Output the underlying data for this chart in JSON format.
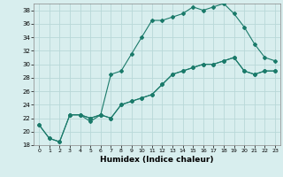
{
  "xlabel": "Humidex (Indice chaleur)",
  "bg_color": "#d8eeee",
  "grid_color": "#b8d8d8",
  "line_color": "#1a7a6a",
  "xlim": [
    -0.5,
    23.5
  ],
  "ylim": [
    18,
    39
  ],
  "xticks": [
    0,
    1,
    2,
    3,
    4,
    5,
    6,
    7,
    8,
    9,
    10,
    11,
    12,
    13,
    14,
    15,
    16,
    17,
    18,
    19,
    20,
    21,
    22,
    23
  ],
  "yticks": [
    18,
    20,
    22,
    24,
    26,
    28,
    30,
    32,
    34,
    36,
    38
  ],
  "line1_x": [
    0,
    1,
    2,
    3,
    4,
    5,
    6,
    7,
    8,
    9,
    10,
    11,
    12,
    13,
    14,
    15,
    16,
    17,
    18,
    19,
    20,
    21,
    22,
    23
  ],
  "line1_y": [
    21,
    19,
    18.5,
    22.5,
    22.5,
    21.5,
    22.5,
    22,
    24,
    24.5,
    25,
    25.5,
    27,
    28.5,
    29,
    29.5,
    30,
    30,
    30.5,
    31,
    29,
    28.5,
    29,
    29
  ],
  "line2_x": [
    0,
    1,
    2,
    3,
    4,
    5,
    6,
    7,
    8,
    9,
    10,
    11,
    12,
    13,
    14,
    15,
    16,
    17,
    18,
    19,
    20,
    21,
    22,
    23
  ],
  "line2_y": [
    21,
    19,
    18.5,
    22.5,
    22.5,
    22,
    22.5,
    28.5,
    29,
    31.5,
    34,
    36.5,
    36.5,
    37,
    37.5,
    38.5,
    38,
    38.5,
    39,
    37.5,
    35.5,
    33,
    31,
    30.5
  ],
  "line3_x": [
    3,
    4,
    5,
    6,
    7,
    8,
    9,
    10,
    11,
    12,
    13,
    14,
    15,
    16,
    17,
    18,
    19,
    20,
    21,
    22,
    23
  ],
  "line3_y": [
    22.5,
    22.5,
    22,
    22.5,
    22,
    24,
    24.5,
    25,
    25.5,
    27,
    28.5,
    29,
    29.5,
    30,
    30,
    30.5,
    31,
    29,
    28.5,
    29,
    29
  ]
}
